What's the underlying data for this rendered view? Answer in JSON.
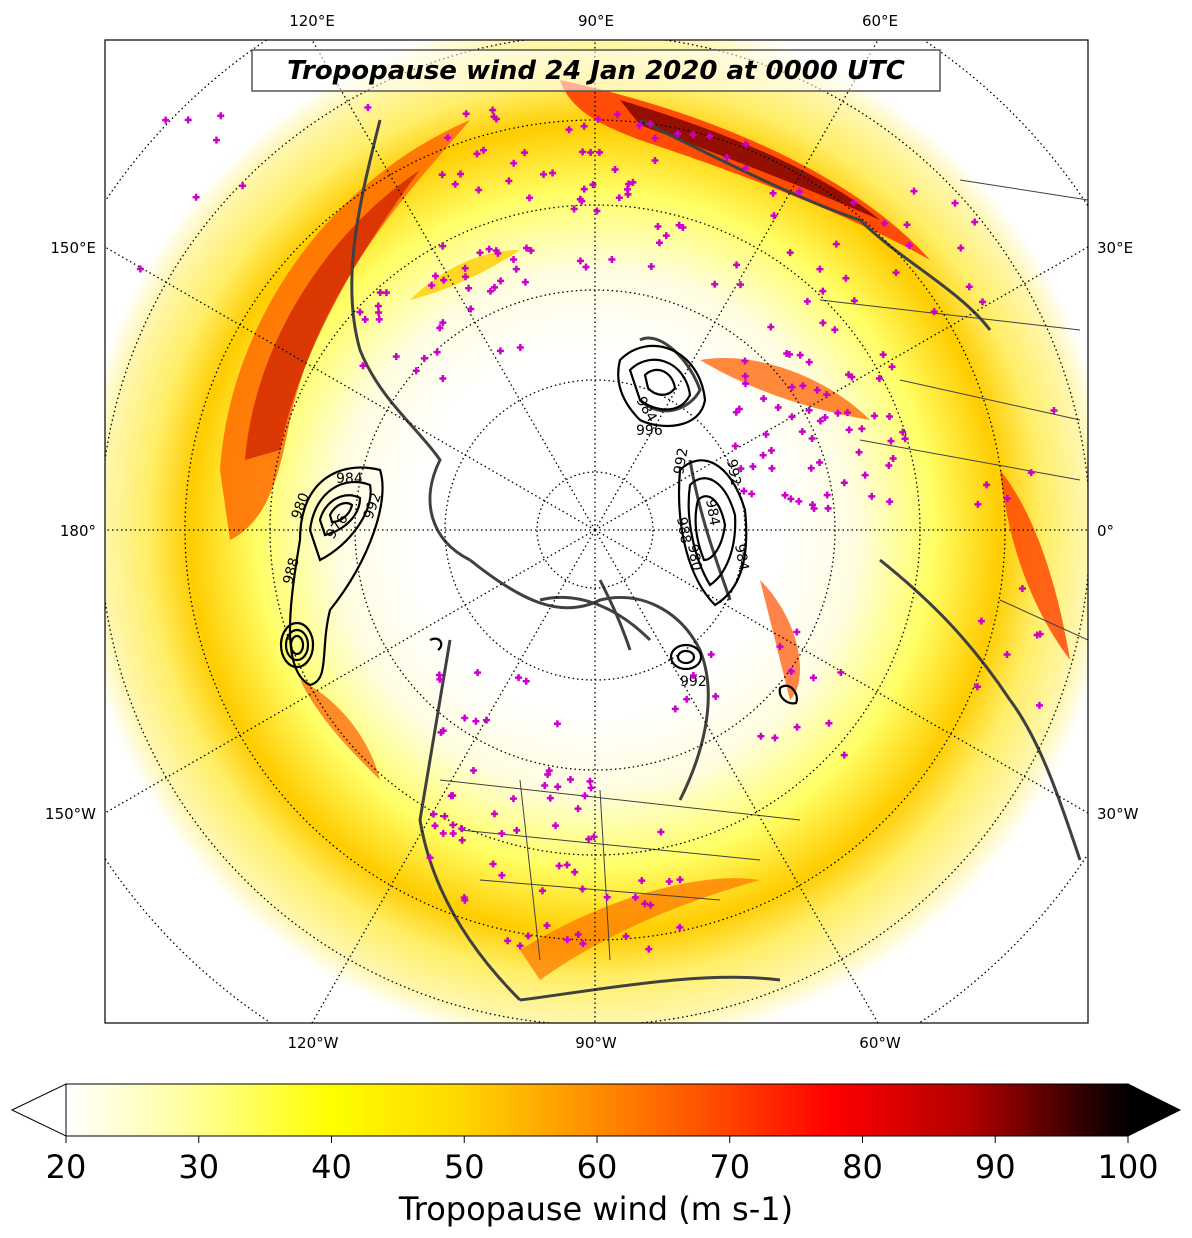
{
  "title": "Tropopause wind 24 Jan 2020 at 0000 UTC",
  "lon_labels": {
    "top": [
      "120°E",
      "90°E",
      "60°E"
    ],
    "left": [
      "150°E",
      "180°",
      "150°W"
    ],
    "right": [
      "30°E",
      "0°",
      "30°W"
    ],
    "bottom": [
      "120°W",
      "90°W",
      "60°W"
    ]
  },
  "pressure_contour_labels": [
    "984",
    "980",
    "976",
    "988",
    "992",
    "984",
    "996",
    "992",
    "984",
    "980",
    "988",
    "984",
    "992",
    "992"
  ],
  "colorbar": {
    "ticks": [
      "20",
      "30",
      "40",
      "50",
      "60",
      "70",
      "80",
      "90",
      "100"
    ],
    "label": "Tropopause wind (m s-1)",
    "colormap": [
      "#ffffff",
      "#ffff99",
      "#ffff00",
      "#ffd700",
      "#ff8c00",
      "#ff4500",
      "#ff0000",
      "#b30000",
      "#5a0000",
      "#000000"
    ],
    "extend": "both"
  },
  "colors": {
    "station_marker": "#cc00cc",
    "coastline": "#404040",
    "contour": "#000000"
  }
}
